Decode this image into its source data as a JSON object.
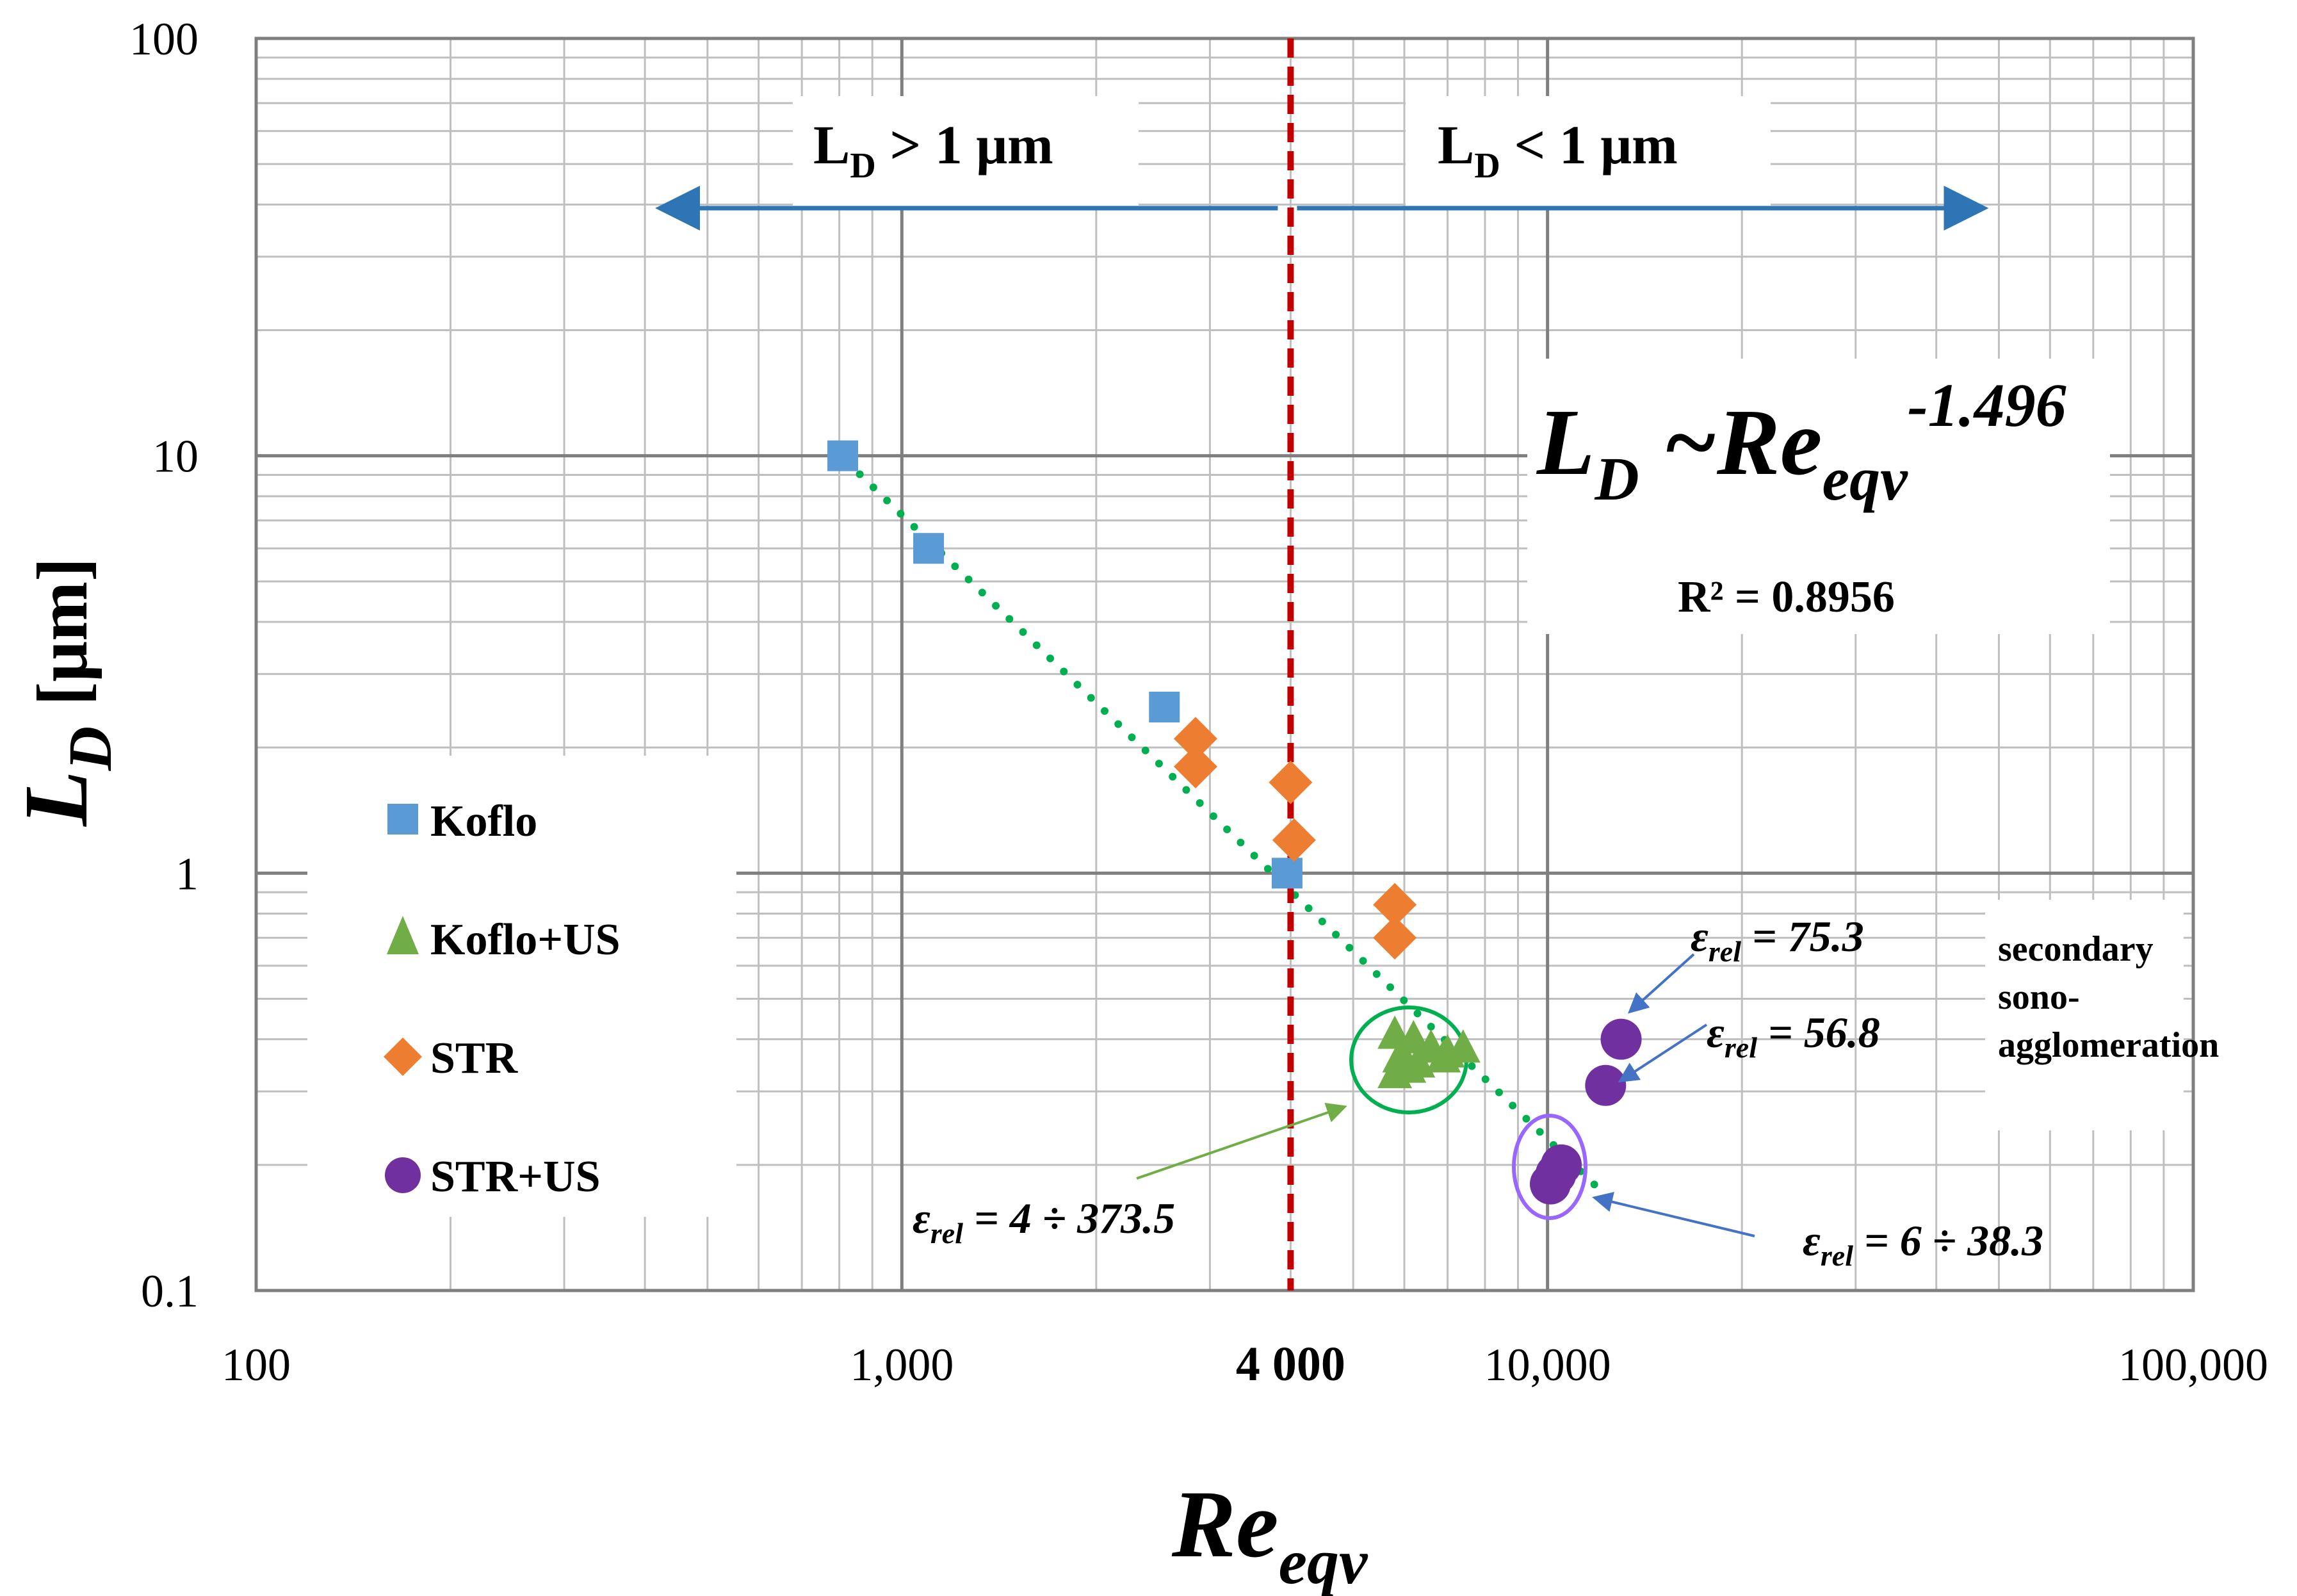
{
  "chart_data": {
    "type": "scatter",
    "x_scale": "log",
    "y_scale": "log",
    "xlim": [
      100,
      100000
    ],
    "ylim": [
      0.1,
      100
    ],
    "x_ticks": [
      {
        "value": 100,
        "label": "100"
      },
      {
        "value": 1000,
        "label": "1,000"
      },
      {
        "value": 4000,
        "label": "4 000"
      },
      {
        "value": 10000,
        "label": "10,000"
      },
      {
        "value": 100000,
        "label": "100,000"
      }
    ],
    "y_ticks": [
      {
        "value": 0.1,
        "label": "0.1"
      },
      {
        "value": 1,
        "label": "1"
      },
      {
        "value": 10,
        "label": "10"
      },
      {
        "value": 100,
        "label": "100"
      }
    ],
    "ylabel": {
      "main": "L",
      "sub": "D",
      "unit": "[μm]"
    },
    "xlabel": {
      "main": "Re",
      "sub": "eqv"
    },
    "threshold": {
      "x": 4000,
      "color": "#c00000"
    },
    "regions": {
      "left": {
        "main": "L",
        "sub": "D",
        "rest": " > 1 μm",
        "arrow_from": 4000,
        "arrow_to": 400
      },
      "right": {
        "main": "L",
        "sub": "D",
        "rest": " < 1 μm",
        "arrow_from": 4000,
        "arrow_to": 50000
      },
      "arrow_color": "#2e75b6"
    },
    "trendline": {
      "type": "power",
      "exponent": -1.496,
      "coefficient": 222000,
      "x_range": [
        820,
        12400
      ],
      "color": "#00b050",
      "equation": {
        "main": "L",
        "sub": "D",
        "mid": " ~Re",
        "sub2": "eqv",
        "sup": "-1.496"
      },
      "r2_label": "R² = 0.8956"
    },
    "series": [
      {
        "name": "Koflo",
        "marker": "square",
        "color": "#5b9bd5",
        "points": [
          [
            810,
            10
          ],
          [
            1100,
            6
          ],
          [
            2550,
            2.5
          ],
          [
            3950,
            1.0
          ]
        ]
      },
      {
        "name": "Koflo+US",
        "marker": "triangle",
        "color": "#70ad47",
        "points": [
          [
            5800,
            0.41
          ],
          [
            6200,
            0.4
          ],
          [
            6600,
            0.38
          ],
          [
            7000,
            0.37
          ],
          [
            7400,
            0.38
          ],
          [
            5900,
            0.36
          ],
          [
            6300,
            0.35
          ],
          [
            6900,
            0.36
          ],
          [
            5800,
            0.33
          ],
          [
            6100,
            0.34
          ]
        ]
      },
      {
        "name": "STR",
        "marker": "diamond",
        "color": "#ed7d31",
        "points": [
          [
            2850,
            2.1
          ],
          [
            2850,
            1.8
          ],
          [
            4000,
            1.65
          ],
          [
            4050,
            1.2
          ],
          [
            5800,
            0.84
          ],
          [
            5800,
            0.7
          ]
        ]
      },
      {
        "name": "STR+US",
        "marker": "circle",
        "color": "#7030a0",
        "points": [
          [
            13000,
            0.4
          ],
          [
            12300,
            0.31
          ],
          [
            10500,
            0.2
          ],
          [
            10300,
            0.19
          ],
          [
            10100,
            0.18
          ]
        ]
      }
    ],
    "annotations": [
      {
        "id": "ann1",
        "text": "ε",
        "sub": "rel",
        "rest": " = 4 ÷ 373.5"
      },
      {
        "id": "ann2",
        "text": "ε",
        "sub": "rel",
        "rest": " = 6 ÷ 38.3"
      },
      {
        "id": "ann3",
        "text": "ε",
        "sub": "rel",
        "rest": " = 75.3"
      },
      {
        "id": "ann4",
        "text": "ε",
        "sub": "rel",
        "rest": " = 56.8"
      }
    ],
    "side_note": [
      "secondary",
      "sono-",
      "agglomeration"
    ]
  }
}
